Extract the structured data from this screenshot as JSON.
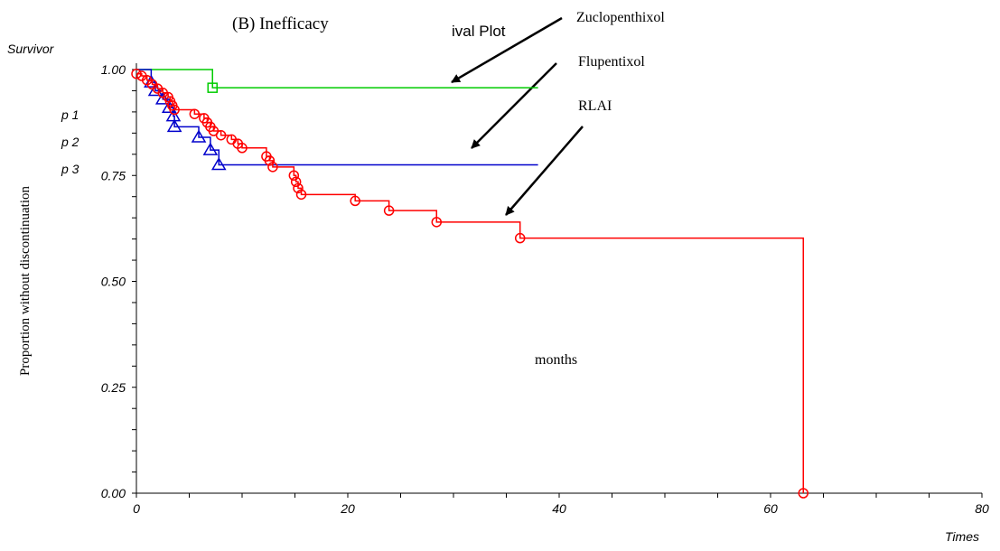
{
  "chart_data": {
    "type": "line",
    "title": "(B) Inefficacy",
    "title_fragment": "ival Plot",
    "corner_label": "Survivor",
    "xlabel": "Times",
    "ylabel": "Proportion without discontinuation",
    "inside_label": "months",
    "xlim": [
      0,
      80
    ],
    "ylim": [
      0,
      1
    ],
    "x_ticks": [
      "0",
      "20",
      "40",
      "60",
      "80"
    ],
    "y_ticks": [
      "0.00",
      "0.25",
      "0.50",
      "0.75",
      "1.00"
    ],
    "p_labels": [
      "p 1",
      "p 2",
      "p 3"
    ],
    "annotations": [
      "Zuclopenthixol",
      "Flupentixol",
      "RLAI"
    ],
    "series": [
      {
        "name": "Zuclopenthixol",
        "color": "#00cc00",
        "marker": "square",
        "steps": [
          [
            0,
            1.0
          ],
          [
            7.2,
            0.957
          ],
          [
            38.0,
            0.957
          ]
        ],
        "events": [
          [
            7.2,
            0.957
          ]
        ]
      },
      {
        "name": "Flupentixol",
        "color": "#0000cc",
        "marker": "triangle",
        "steps": [
          [
            0,
            1.0
          ],
          [
            1.4,
            0.97
          ],
          [
            1.8,
            0.95
          ],
          [
            2.5,
            0.93
          ],
          [
            3.1,
            0.91
          ],
          [
            3.5,
            0.89
          ],
          [
            3.6,
            0.865
          ],
          [
            5.9,
            0.84
          ],
          [
            7.0,
            0.81
          ],
          [
            7.8,
            0.775
          ],
          [
            38.0,
            0.775
          ]
        ],
        "events": [
          [
            1.4,
            0.97
          ],
          [
            1.8,
            0.95
          ],
          [
            2.5,
            0.93
          ],
          [
            3.1,
            0.91
          ],
          [
            3.5,
            0.89
          ],
          [
            3.6,
            0.865
          ],
          [
            5.9,
            0.84
          ],
          [
            7.0,
            0.81
          ],
          [
            7.8,
            0.775
          ]
        ]
      },
      {
        "name": "RLAI",
        "color": "#ff0000",
        "marker": "circle",
        "steps": [
          [
            0,
            0.99
          ],
          [
            0.5,
            0.985
          ],
          [
            1.0,
            0.975
          ],
          [
            1.5,
            0.965
          ],
          [
            2.0,
            0.955
          ],
          [
            2.5,
            0.945
          ],
          [
            3.0,
            0.935
          ],
          [
            3.2,
            0.925
          ],
          [
            3.4,
            0.915
          ],
          [
            3.6,
            0.905
          ],
          [
            5.5,
            0.895
          ],
          [
            6.4,
            0.885
          ],
          [
            6.7,
            0.875
          ],
          [
            7.0,
            0.865
          ],
          [
            7.3,
            0.855
          ],
          [
            8.0,
            0.845
          ],
          [
            9.0,
            0.835
          ],
          [
            9.6,
            0.825
          ],
          [
            10.0,
            0.815
          ],
          [
            12.3,
            0.795
          ],
          [
            12.6,
            0.785
          ],
          [
            12.9,
            0.77
          ],
          [
            14.9,
            0.75
          ],
          [
            15.1,
            0.735
          ],
          [
            15.3,
            0.72
          ],
          [
            15.6,
            0.705
          ],
          [
            20.7,
            0.69
          ],
          [
            23.9,
            0.667
          ],
          [
            28.4,
            0.64
          ],
          [
            36.3,
            0.602
          ],
          [
            63.1,
            0.0
          ]
        ],
        "events": [
          [
            0,
            0.99
          ],
          [
            0.5,
            0.985
          ],
          [
            1.0,
            0.975
          ],
          [
            1.5,
            0.965
          ],
          [
            2.0,
            0.955
          ],
          [
            2.5,
            0.945
          ],
          [
            3.0,
            0.935
          ],
          [
            3.2,
            0.925
          ],
          [
            3.4,
            0.915
          ],
          [
            3.6,
            0.905
          ],
          [
            5.5,
            0.895
          ],
          [
            6.4,
            0.885
          ],
          [
            6.7,
            0.875
          ],
          [
            7.0,
            0.865
          ],
          [
            7.3,
            0.855
          ],
          [
            8.0,
            0.845
          ],
          [
            9.0,
            0.835
          ],
          [
            9.6,
            0.825
          ],
          [
            10.0,
            0.815
          ],
          [
            12.3,
            0.795
          ],
          [
            12.6,
            0.785
          ],
          [
            12.9,
            0.77
          ],
          [
            14.9,
            0.75
          ],
          [
            15.1,
            0.735
          ],
          [
            15.3,
            0.72
          ],
          [
            15.6,
            0.705
          ],
          [
            20.7,
            0.69
          ],
          [
            23.9,
            0.667
          ],
          [
            28.4,
            0.64
          ],
          [
            36.3,
            0.602
          ],
          [
            63.1,
            0.0
          ]
        ]
      }
    ]
  }
}
